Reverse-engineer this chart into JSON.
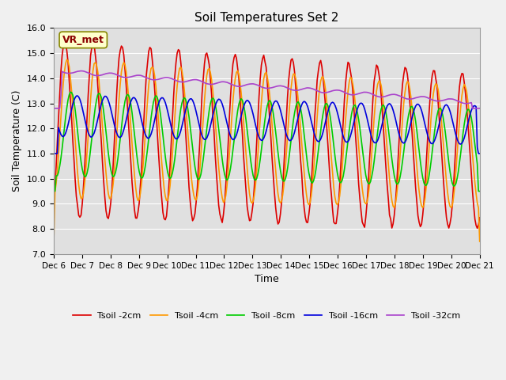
{
  "title": "Soil Temperatures Set 2",
  "xlabel": "Time",
  "ylabel": "Soil Temperature (C)",
  "ylim": [
    7.0,
    16.0
  ],
  "yticks": [
    7.0,
    8.0,
    9.0,
    10.0,
    11.0,
    12.0,
    13.0,
    14.0,
    15.0,
    16.0
  ],
  "xtick_labels": [
    "Dec 6",
    "Dec 7",
    "Dec 8",
    "Dec 9",
    "Dec 10",
    "Dec 11",
    "Dec 12",
    "Dec 13",
    "Dec 14",
    "Dec 15",
    "Dec 16",
    "Dec 17",
    "Dec 18",
    "Dec 19",
    "Dec 20",
    "Dec 21"
  ],
  "station_label": "VR_met",
  "legend_entries": [
    "Tsoil -2cm",
    "Tsoil -4cm",
    "Tsoil -8cm",
    "Tsoil -16cm",
    "Tsoil -32cm"
  ],
  "line_colors": [
    "#dd0000",
    "#ff9900",
    "#00cc00",
    "#0000dd",
    "#aa44cc"
  ],
  "fig_facecolor": "#f0f0f0",
  "plot_bg_color": "#e0e0e0",
  "n_days": 15,
  "n_points_per_day": 24
}
